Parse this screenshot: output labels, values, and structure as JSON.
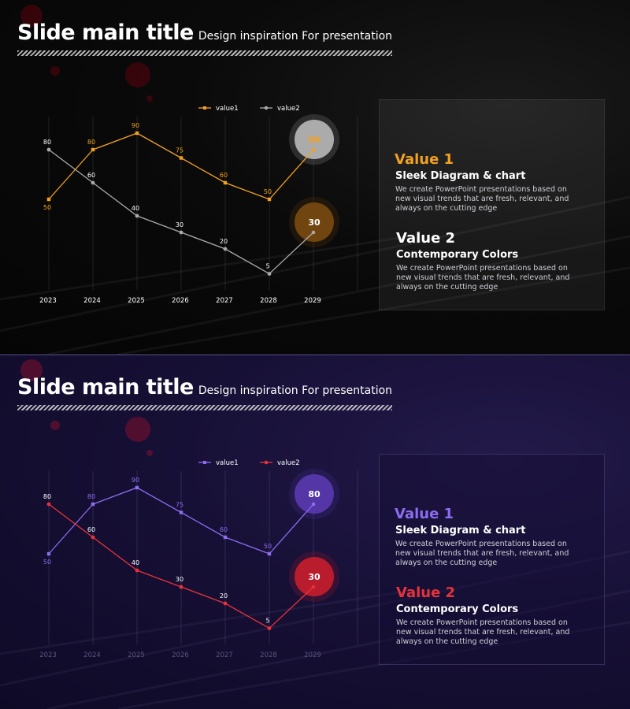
{
  "slides": [
    {
      "title": "Slide main title",
      "subtitle": "Design inspiration For presentation",
      "colors": {
        "value1": "#f2a11f",
        "value2": "#a9a9a9",
        "value1_heading": "#f2a11f",
        "value2_heading": "#ffffff",
        "bubble1": "#b9b9b9",
        "bubble2": "#7a4a10"
      },
      "items": [
        {
          "heading": "Value 1",
          "subheading": "Sleek Diagram & chart",
          "body": "We create PowerPoint presentations based on new visual trends that are fresh, relevant, and always on the cutting edge"
        },
        {
          "heading": "Value 2",
          "subheading": "Contemporary Colors",
          "body": "We create PowerPoint presentations based on new visual trends that are fresh, relevant, and always on the cutting edge"
        }
      ]
    },
    {
      "title": "Slide main title",
      "subtitle": "Design inspiration For presentation",
      "colors": {
        "value1": "#8c6cf0",
        "value2": "#e8323a",
        "value1_heading": "#8c6cf0",
        "value2_heading": "#e8323a",
        "bubble1": "#5a3ab0",
        "bubble2": "#c81e2c"
      },
      "items": [
        {
          "heading": "Value 1",
          "subheading": "Sleek Diagram & chart",
          "body": "We create PowerPoint presentations based on new visual trends that are fresh, relevant, and always on the cutting edge"
        },
        {
          "heading": "Value 2",
          "subheading": "Contemporary Colors",
          "body": "We create PowerPoint presentations based on new visual trends that are fresh, relevant, and always on the cutting edge"
        }
      ]
    }
  ],
  "chart_data": [
    {
      "type": "line",
      "categories": [
        "2023",
        "2024",
        "2025",
        "2026",
        "2027",
        "2028",
        "2029"
      ],
      "series": [
        {
          "name": "value1",
          "values": [
            50,
            80,
            90,
            75,
            60,
            50,
            80
          ]
        },
        {
          "name": "value2",
          "values": [
            80,
            60,
            40,
            30,
            20,
            5,
            30
          ]
        }
      ],
      "highlight": {
        "value1": "80",
        "value2": "30"
      },
      "grid": "vertical",
      "legend": "top"
    },
    {
      "type": "line",
      "categories": [
        "2023",
        "2024",
        "2025",
        "2026",
        "2027",
        "2028",
        "2029"
      ],
      "series": [
        {
          "name": "value1",
          "values": [
            50,
            80,
            90,
            75,
            60,
            50,
            80
          ]
        },
        {
          "name": "value2",
          "values": [
            80,
            60,
            40,
            30,
            20,
            5,
            30
          ]
        }
      ],
      "highlight": {
        "value1": "80",
        "value2": "30"
      },
      "grid": "vertical",
      "legend": "top"
    }
  ]
}
